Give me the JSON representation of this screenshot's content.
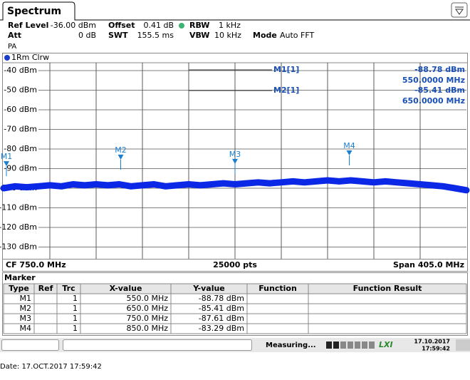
{
  "tab": "Spectrum",
  "settings": {
    "ref_level_label": "Ref Level",
    "ref_level": "-36.00 dBm",
    "offset_label": "Offset",
    "offset": "0.41 dB",
    "rbw_label": "RBW",
    "rbw": "1 kHz",
    "att_label": "Att",
    "att": "0 dB",
    "swt_label": "SWT",
    "swt": "155.5 ms",
    "vbw_label": "VBW",
    "vbw": "10 kHz",
    "mode_label": "Mode",
    "mode": "Auto FFT",
    "preamp": "PA"
  },
  "chart_data": {
    "type": "line",
    "x": [
      547.5,
      557.625,
      567.75,
      577.875,
      588,
      598.125,
      608.25,
      618.375,
      628.5,
      638.625,
      648.75,
      658.875,
      669,
      679.125,
      689.25,
      699.375,
      709.5,
      719.625,
      729.75,
      739.875,
      750,
      760.125,
      770.25,
      780.375,
      790.5,
      800.625,
      810.75,
      820.875,
      831,
      841.125,
      851.25,
      861.375,
      871.5,
      881.625,
      891.75,
      901.875,
      912,
      922.125,
      932.25,
      942.375,
      952.5
    ],
    "series": [
      {
        "name": "1Rm Clrw",
        "color": "#0a28e6",
        "values": [
          -100,
          -99,
          -99.5,
          -99,
          -98.5,
          -99,
          -98,
          -98.5,
          -98,
          -98.5,
          -98,
          -99,
          -98.5,
          -98,
          -99,
          -98.5,
          -98,
          -98.5,
          -98,
          -97.5,
          -98,
          -97.5,
          -97,
          -97.5,
          -97,
          -96.5,
          -97,
          -96.5,
          -96,
          -96.5,
          -96,
          -96.5,
          -97,
          -96.5,
          -97,
          -97.5,
          -98,
          -98.5,
          -99,
          -100,
          -101
        ]
      }
    ],
    "xlim": [
      547.5,
      952.5
    ],
    "ylim": [
      -136,
      -36
    ],
    "yticks": [
      {
        "value": -40,
        "label": "-40 dBm"
      },
      {
        "value": -50,
        "label": "-50 dBm"
      },
      {
        "value": -60,
        "label": "-60 dBm"
      },
      {
        "value": -70,
        "label": "-70 dBm"
      },
      {
        "value": -80,
        "label": "-80 dBm"
      },
      {
        "value": -90,
        "label": "-90 dBm"
      },
      {
        "value": -100,
        "label": "-100 dBm"
      },
      {
        "value": -110,
        "label": "-110 dBm"
      },
      {
        "value": -120,
        "label": "-120 dBm"
      },
      {
        "value": -130,
        "label": "-130 dBm"
      }
    ],
    "grid": true,
    "markers": [
      {
        "name": "M1",
        "x": 550,
        "y": -88.78
      },
      {
        "name": "M2",
        "x": 650,
        "y": -85.41
      },
      {
        "name": "M3",
        "x": 750,
        "y": -87.61
      },
      {
        "name": "M4",
        "x": 850,
        "y": -83.29
      }
    ],
    "readout": [
      {
        "label": "M1[1]",
        "level": "-88.78 dBm",
        "freq": "550.0000 MHz"
      },
      {
        "label": "M2[1]",
        "level": "-85.41 dBm",
        "freq": "650.0000 MHz"
      }
    ],
    "footer": {
      "center": "CF 750.0 MHz",
      "points": "25000 pts",
      "span": "Span 405.0 MHz"
    }
  },
  "marker_table": {
    "title": "Marker",
    "headers": [
      "Type",
      "Ref",
      "Trc",
      "X-value",
      "Y-value",
      "Function",
      "Function Result"
    ],
    "rows": [
      {
        "type": "M1",
        "trc": "1",
        "x_value": "550.0 MHz",
        "y_value": "-88.78 dBm"
      },
      {
        "type": "M2",
        "trc": "1",
        "x_value": "650.0 MHz",
        "y_value": "-85.41 dBm"
      },
      {
        "type": "M3",
        "trc": "1",
        "x_value": "750.0 MHz",
        "y_value": "-87.61 dBm"
      },
      {
        "type": "M4",
        "trc": "1",
        "x_value": "850.0 MHz",
        "y_value": "-83.29 dBm"
      }
    ]
  },
  "status": {
    "state": "Measuring...",
    "logo": "LXI",
    "date": "17.10.2017",
    "time": "17:59:42"
  },
  "footer_date": "Date: 17.OCT.2017  17:59:42"
}
